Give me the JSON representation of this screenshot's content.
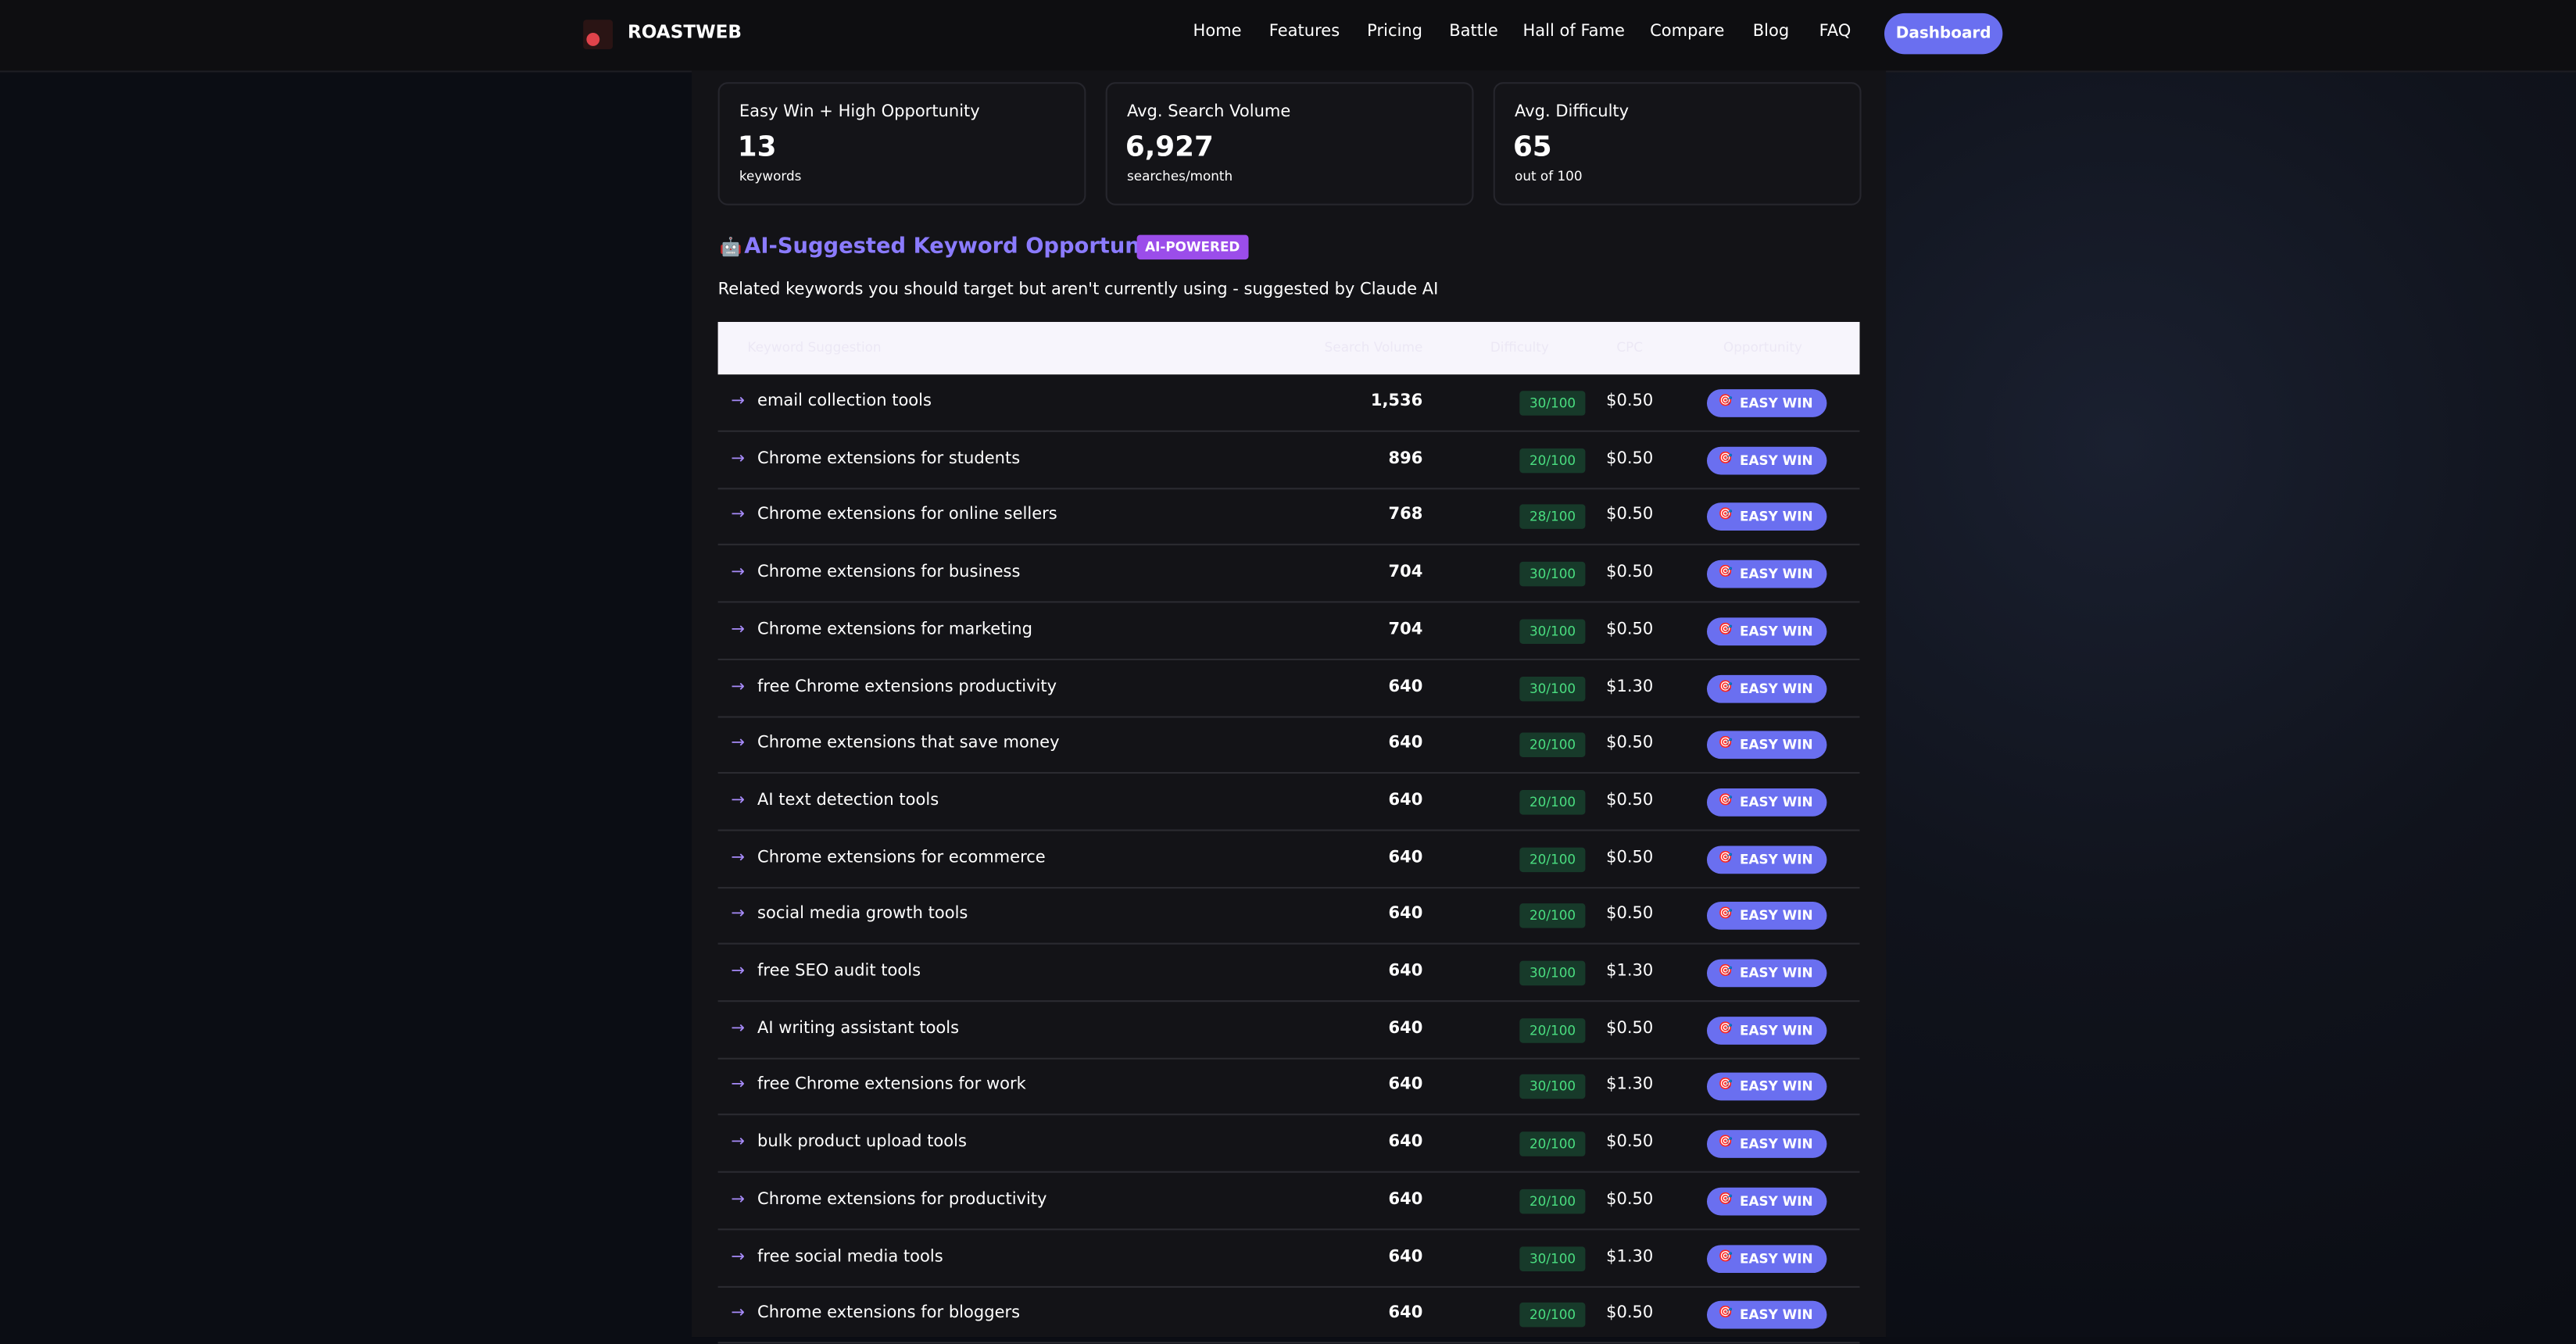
{
  "nav": {
    "brand": "ROASTWEB",
    "links": [
      "Home",
      "Features",
      "Pricing",
      "Battle",
      "Hall of Fame",
      "Compare",
      "Blog",
      "FAQ"
    ],
    "button": "Dashboard"
  },
  "stats": [
    {
      "label": "Easy Win + High Opportunity",
      "value": "13",
      "unit": "keywords"
    },
    {
      "label": "Avg. Search Volume",
      "value": "6,927",
      "unit": "searches/month"
    },
    {
      "label": "Avg. Difficulty",
      "value": "65",
      "unit": "out of 100"
    }
  ],
  "section": {
    "title": "AI-Suggested Keyword Opportunities",
    "badge": "AI-POWERED",
    "subtitle": "Related keywords you should target but aren't currently using - suggested by Claude AI"
  },
  "table": {
    "headers": [
      "Keyword Suggestion",
      "Search Volume",
      "Difficulty",
      "CPC",
      "Opportunity"
    ],
    "rows": [
      [
        "email collection tools",
        "1,536",
        "30/100",
        "$0.50",
        "EASY WIN"
      ],
      [
        "Chrome extensions for students",
        "896",
        "20/100",
        "$0.50",
        "EASY WIN"
      ],
      [
        "Chrome extensions for online sellers",
        "768",
        "28/100",
        "$0.50",
        "EASY WIN"
      ],
      [
        "Chrome extensions for business",
        "704",
        "30/100",
        "$0.50",
        "EASY WIN"
      ],
      [
        "Chrome extensions for marketing",
        "704",
        "30/100",
        "$0.50",
        "EASY WIN"
      ],
      [
        "free Chrome extensions productivity",
        "640",
        "30/100",
        "$1.30",
        "EASY WIN"
      ],
      [
        "Chrome extensions that save money",
        "640",
        "20/100",
        "$0.50",
        "EASY WIN"
      ],
      [
        "AI text detection tools",
        "640",
        "20/100",
        "$0.50",
        "EASY WIN"
      ],
      [
        "Chrome extensions for ecommerce",
        "640",
        "20/100",
        "$0.50",
        "EASY WIN"
      ],
      [
        "social media growth tools",
        "640",
        "20/100",
        "$0.50",
        "EASY WIN"
      ],
      [
        "free SEO audit tools",
        "640",
        "30/100",
        "$1.30",
        "EASY WIN"
      ],
      [
        "AI writing assistant tools",
        "640",
        "20/100",
        "$0.50",
        "EASY WIN"
      ],
      [
        "free Chrome extensions for work",
        "640",
        "30/100",
        "$1.30",
        "EASY WIN"
      ],
      [
        "bulk product upload tools",
        "640",
        "20/100",
        "$0.50",
        "EASY WIN"
      ],
      [
        "Chrome extensions for productivity",
        "640",
        "20/100",
        "$0.50",
        "EASY WIN"
      ],
      [
        "free social media tools",
        "640",
        "30/100",
        "$1.30",
        "EASY WIN"
      ],
      [
        "Chrome extensions for bloggers",
        "640",
        "20/100",
        "$0.50",
        "EASY WIN"
      ]
    ]
  }
}
